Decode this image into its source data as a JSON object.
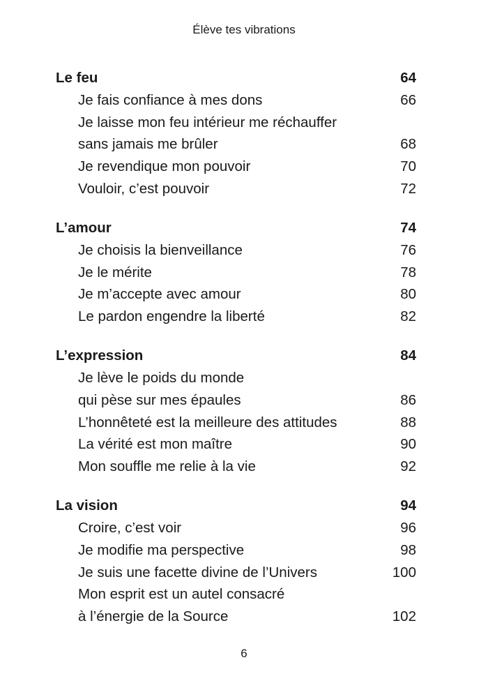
{
  "header": {
    "title": "Élève tes vibrations"
  },
  "sections": [
    {
      "title": "Le feu",
      "page": 64,
      "entries": [
        {
          "lines": [
            "Je fais confiance à mes dons"
          ],
          "page": 66
        },
        {
          "lines": [
            "Je laisse mon feu intérieur me réchauffer",
            "sans jamais me brûler"
          ],
          "page": 68
        },
        {
          "lines": [
            "Je revendique mon pouvoir"
          ],
          "page": 70
        },
        {
          "lines": [
            "Vouloir, c’est pouvoir"
          ],
          "page": 72
        }
      ]
    },
    {
      "title": "L’amour",
      "page": 74,
      "entries": [
        {
          "lines": [
            "Je choisis la bienveillance"
          ],
          "page": 76
        },
        {
          "lines": [
            "Je le mérite"
          ],
          "page": 78
        },
        {
          "lines": [
            "Je m’accepte avec amour"
          ],
          "page": 80
        },
        {
          "lines": [
            "Le pardon engendre la liberté"
          ],
          "page": 82
        }
      ]
    },
    {
      "title": "L’expression",
      "page": 84,
      "entries": [
        {
          "lines": [
            "Je lève le poids du monde",
            "qui pèse sur mes épaules"
          ],
          "page": 86
        },
        {
          "lines": [
            "L’honnêteté est la meilleure des attitudes"
          ],
          "page": 88
        },
        {
          "lines": [
            "La vérité est mon maître"
          ],
          "page": 90
        },
        {
          "lines": [
            "Mon souffle me relie à la vie"
          ],
          "page": 92
        }
      ]
    },
    {
      "title": "La vision",
      "page": 94,
      "entries": [
        {
          "lines": [
            "Croire, c’est voir"
          ],
          "page": 96
        },
        {
          "lines": [
            "Je modifie ma perspective"
          ],
          "page": 98
        },
        {
          "lines": [
            "Je suis une facette divine de l’Univers"
          ],
          "page": 100
        },
        {
          "lines": [
            "Mon esprit est un autel consacré",
            "à l’énergie de la Source"
          ],
          "page": 102
        }
      ]
    }
  ],
  "footer": {
    "page_number": 6
  }
}
